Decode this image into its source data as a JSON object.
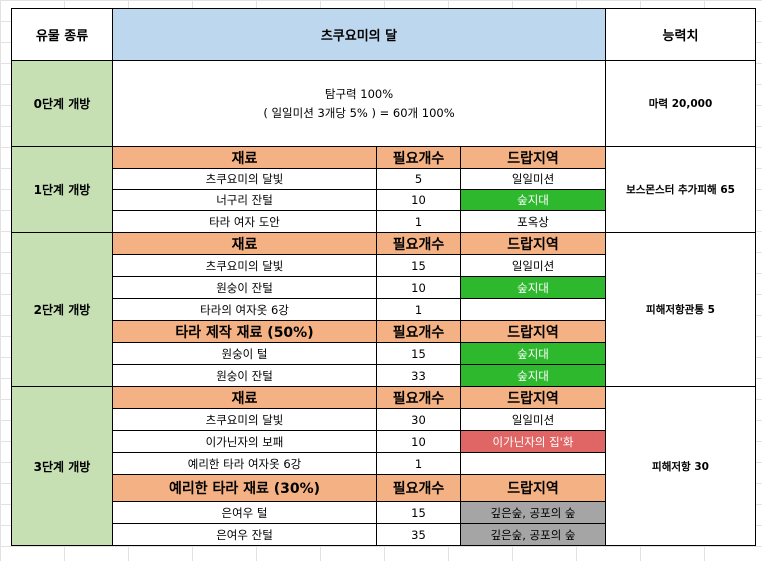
{
  "headers": {
    "type": "유물 종류",
    "title": "츠쿠요미의 달",
    "ability": "능력치"
  },
  "sub_headers": {
    "material": "재료",
    "count": "필요개수",
    "drop": "드랍지역"
  },
  "stage0": {
    "label": "0단계 개방",
    "desc_line1": "탐구력 100%",
    "desc_line2": "( 일일미션 3개당 5% ) = 60개 100%",
    "ability": "마력 20,000"
  },
  "stage1": {
    "label": "1단계 개방",
    "ability": "보스몬스터 추가피해 65",
    "rows": [
      {
        "material": "츠쿠요미의 달빛",
        "count": "5",
        "drop": "일일미션"
      },
      {
        "material": "너구리 잔털",
        "count": "10",
        "drop": "숲지대"
      },
      {
        "material": "타라 여자 도안",
        "count": "1",
        "drop": "포옥상"
      }
    ]
  },
  "stage2": {
    "label": "2단계 개방",
    "ability": "피해저항관통 5",
    "rows": [
      {
        "material": "츠쿠요미의 달빛",
        "count": "15",
        "drop": "일일미션"
      },
      {
        "material": "원숭이 잔털",
        "count": "10",
        "drop": "숲지대"
      },
      {
        "material": "타라의 여자옷 6강",
        "count": "1",
        "drop": ""
      }
    ],
    "craft_header": "타라 제작 재료 (50%)",
    "craft_rows": [
      {
        "material": "원숭이 털",
        "count": "15",
        "drop": "숲지대"
      },
      {
        "material": "원숭이 잔털",
        "count": "33",
        "drop": "숲지대"
      }
    ]
  },
  "stage3": {
    "label": "3단계 개방",
    "ability": "피해저항 30",
    "rows": [
      {
        "material": "츠쿠요미의 달빛",
        "count": "30",
        "drop": "일일미션"
      },
      {
        "material": "이가닌자의 보패",
        "count": "10",
        "drop": "이가닌자의 집'화"
      },
      {
        "material": "예리한 타라 여자옷 6강",
        "count": "1",
        "drop": ""
      }
    ],
    "craft_header": "예리한 타라 재료 (30%)",
    "craft_rows": [
      {
        "material": "은여우 털",
        "count": "15",
        "drop": "깊은숲, 공포의 숲"
      },
      {
        "material": "은여우 잔털",
        "count": "35",
        "drop": "깊은숲, 공포의 숲"
      }
    ]
  },
  "colors": {
    "title_bg": "#bdd7ee",
    "stage_bg": "#c6e0b4",
    "subheader_bg": "#f4b183",
    "drop_green": "#2eb82e",
    "drop_red": "#e06666",
    "drop_grey": "#a5a5a5"
  }
}
